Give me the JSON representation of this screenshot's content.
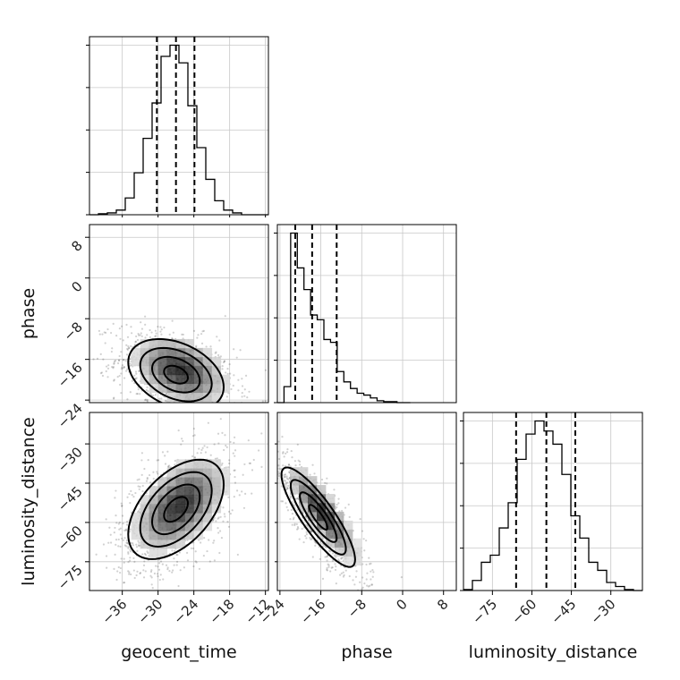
{
  "chart_data": {
    "type": "corner",
    "grid": true,
    "parameters": [
      {
        "name": "geocent_time",
        "label": "geocent_time",
        "range": [
          -41.5,
          -11.5
        ],
        "ticks": [
          -36,
          -30,
          -24,
          -18,
          -12
        ],
        "tick_labels": [
          "−36",
          "−30",
          "−24",
          "−18",
          "−12"
        ]
      },
      {
        "name": "phase",
        "label": "phase",
        "range": [
          -24.5,
          10.5
        ],
        "ticks": [
          -24,
          -16,
          -8,
          0,
          8
        ],
        "tick_labels": [
          "−24",
          "−16",
          "−8",
          "0",
          "8"
        ]
      },
      {
        "name": "luminosity_distance",
        "label": "luminosity_distance",
        "range": [
          -86,
          -18
        ],
        "ticks": [
          -75,
          -60,
          -45,
          -30
        ],
        "tick_labels": [
          "−75",
          "−60",
          "−45",
          "−30"
        ]
      }
    ],
    "row_tick_labels": {
      "phase": [
        "−24",
        "−16",
        "−8",
        "0",
        "8"
      ],
      "luminosity_distance": [
        "−75",
        "−60",
        "−45",
        "−30"
      ]
    },
    "histograms": [
      {
        "param": "geocent_time",
        "bin_edges": [
          -41.5,
          -40,
          -38.5,
          -37,
          -35.5,
          -34,
          -32.5,
          -31,
          -29.5,
          -28,
          -26.5,
          -25,
          -23.5,
          -22,
          -20.5,
          -19,
          -17.5,
          -16,
          -14.5,
          -13,
          -11.5
        ],
        "counts": [
          0,
          1,
          2,
          5,
          18,
          45,
          82,
          120,
          170,
          182,
          163,
          117,
          72,
          38,
          15,
          5,
          2,
          0,
          0,
          0
        ],
        "quantiles": [
          -30.2,
          -27.0,
          -23.9
        ]
      },
      {
        "param": "phase",
        "bin_edges": [
          -24.5,
          -23.2,
          -21.9,
          -20.6,
          -19.3,
          -18.0,
          -16.7,
          -15.4,
          -14.1,
          -12.8,
          -11.5,
          -10.2,
          -8.9,
          -7.6,
          -6.3,
          -5.0,
          -3.7,
          -2.4,
          -1.1,
          0.2,
          1.5
        ],
        "counts": [
          0,
          17,
          180,
          143,
          120,
          93,
          88,
          67,
          64,
          33,
          22,
          15,
          10,
          8,
          5,
          2,
          1,
          1,
          0,
          0
        ],
        "quantiles": [
          -21.0,
          -17.7,
          -12.9
        ]
      },
      {
        "param": "luminosity_distance",
        "bin_edges": [
          -86,
          -82.6,
          -79.2,
          -75.8,
          -72.4,
          -69,
          -65.6,
          -62.2,
          -58.8,
          -55.4,
          -52,
          -48.6,
          -45.2,
          -41.8,
          -38.4,
          -35,
          -31.6,
          -28.2,
          -24.8,
          -21.4,
          -18
        ],
        "counts": [
          1,
          10,
          28,
          35,
          62,
          87,
          130,
          155,
          168,
          158,
          145,
          115,
          74,
          52,
          28,
          20,
          8,
          4,
          1,
          0
        ],
        "quantiles": [
          -66.0,
          -54.5,
          -43.5
        ]
      }
    ],
    "joint": [
      {
        "x": "geocent_time",
        "y": "phase",
        "center": [
          -27,
          -19
        ],
        "spread": [
          4.0,
          3.5
        ],
        "rho": -0.35,
        "contour_levels_sigma": [
          0.5,
          1.0,
          1.5,
          2.0
        ]
      },
      {
        "x": "geocent_time",
        "y": "luminosity_distance",
        "center": [
          -27,
          -55
        ],
        "spread": [
          4.0,
          9.5
        ],
        "rho": 0.5,
        "contour_levels_sigma": [
          0.5,
          1.0,
          1.5,
          2.0
        ]
      },
      {
        "x": "phase",
        "y": "luminosity_distance",
        "center": [
          -16.5,
          -58
        ],
        "spread": [
          3.6,
          9.5
        ],
        "rho": -0.85,
        "contour_levels_sigma": [
          0.5,
          1.0,
          1.5,
          2.0
        ]
      }
    ]
  }
}
